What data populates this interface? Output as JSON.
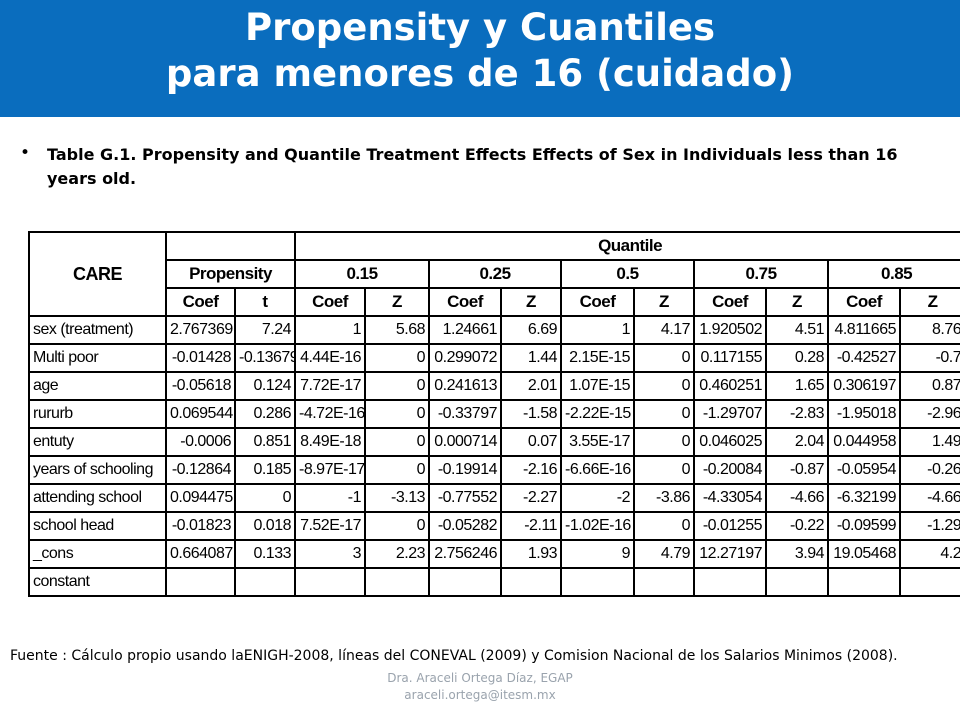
{
  "title": {
    "line1": "Propensity y Cuantiles",
    "line2": "para menores de 16 (cuidado)"
  },
  "caption": {
    "bullet": "•",
    "text": "Table G.1. Propensity and Quantile Treatment Effects Effects of Sex in Individuals less than 16 years old."
  },
  "table": {
    "row_header": "CARE",
    "quantile_header": "Quantile",
    "groups": [
      "Propensity",
      "0.15",
      "0.25",
      "0.5",
      "0.75",
      "0.85"
    ],
    "subheaders": [
      "Coef",
      "t",
      "Coef",
      "Z",
      "Coef",
      "Z",
      "Coef",
      "Z",
      "Coef",
      "Z",
      "Coef",
      "Z"
    ],
    "rows": [
      {
        "label": "sex (treatment)",
        "values": [
          "2.767369",
          "7.24",
          "1",
          "5.68",
          "1.24661",
          "6.69",
          "1",
          "4.17",
          "1.920502",
          "4.51",
          "4.811665",
          "8.76"
        ]
      },
      {
        "label": "Multi poor",
        "values": [
          "-0.01428",
          "-0.13679",
          "4.44E-16",
          "0",
          "0.299072",
          "1.44",
          "2.15E-15",
          "0",
          "0.117155",
          "0.28",
          "-0.42527",
          "-0.7"
        ]
      },
      {
        "label": "age",
        "values": [
          "-0.05618",
          "0.124",
          "7.72E-17",
          "0",
          "0.241613",
          "2.01",
          "1.07E-15",
          "0",
          "0.460251",
          "1.65",
          "0.306197",
          "0.87"
        ]
      },
      {
        "label": "rururb",
        "values": [
          "0.069544",
          "0.286",
          "-4.72E-16",
          "0",
          "-0.33797",
          "-1.58",
          "-2.22E-15",
          "0",
          "-1.29707",
          "-2.83",
          "-1.95018",
          "-2.96"
        ]
      },
      {
        "label": "entuty",
        "values": [
          "-0.0006",
          "0.851",
          "8.49E-18",
          "0",
          "0.000714",
          "0.07",
          "3.55E-17",
          "0",
          "0.046025",
          "2.04",
          "0.044958",
          "1.49"
        ]
      },
      {
        "label": "years of schooling",
        "values": [
          "-0.12864",
          "0.185",
          "-8.97E-17",
          "0",
          "-0.19914",
          "-2.16",
          "-6.66E-16",
          "0",
          "-0.20084",
          "-0.87",
          "-0.05954",
          "-0.26"
        ]
      },
      {
        "label": "attending school",
        "values": [
          "0.094475",
          "0",
          "-1",
          "-3.13",
          "-0.77552",
          "-2.27",
          "-2",
          "-3.86",
          "-4.33054",
          "-4.66",
          "-6.32199",
          "-4.66"
        ]
      },
      {
        "label": "school head",
        "values": [
          "-0.01823",
          "0.018",
          "7.52E-17",
          "0",
          "-0.05282",
          "-2.11",
          "-1.02E-16",
          "0",
          "-0.01255",
          "-0.22",
          "-0.09599",
          "-1.29"
        ]
      },
      {
        "label": "_cons",
        "values": [
          "0.664087",
          "0.133",
          "3",
          "2.23",
          "2.756246",
          "1.93",
          "9",
          "4.79",
          "12.27197",
          "3.94",
          "19.05468",
          "4.2"
        ]
      }
    ],
    "last_row_label": "constant"
  },
  "footnote": "Fuente : Cálculo propio usando laENIGH-2008,  líneas del CONEVAL (2009) y Comision Nacional de los Salarios Minimos (2008).",
  "author": {
    "line1": "Dra. Araceli Ortega Díaz, EGAP",
    "line2": "araceli.ortega@itesm.mx"
  },
  "colors": {
    "title_background": "#0a6dbe",
    "title_text": "#ffffff",
    "author_text": "#9aa3ad"
  }
}
